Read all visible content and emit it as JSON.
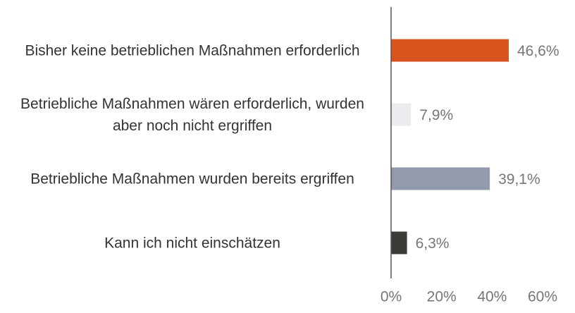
{
  "chart_data": {
    "type": "hbar",
    "categories": [
      "Bisher keine betrieblichen Maßnahmen erforderlich",
      "Betriebliche Maßnahmen wären erforderlich, wurden aber noch nicht ergriffen",
      "Betriebliche Maßnahmen wurden bereits ergriffen",
      "Kann ich nicht einschätzen"
    ],
    "values": [
      46.6,
      7.9,
      39.1,
      6.3
    ],
    "value_labels": [
      "46,6%",
      "7,9%",
      "39,1%",
      "6,3%"
    ],
    "colors": [
      "#d9531e",
      "#ececf0",
      "#929aab",
      "#3b3b37"
    ],
    "xlim": [
      0,
      60
    ],
    "xticks": [
      {
        "value": 0,
        "label": "0%"
      },
      {
        "value": 20,
        "label": "20%"
      },
      {
        "value": 40,
        "label": "40%"
      },
      {
        "value": 60,
        "label": "60%"
      }
    ]
  }
}
